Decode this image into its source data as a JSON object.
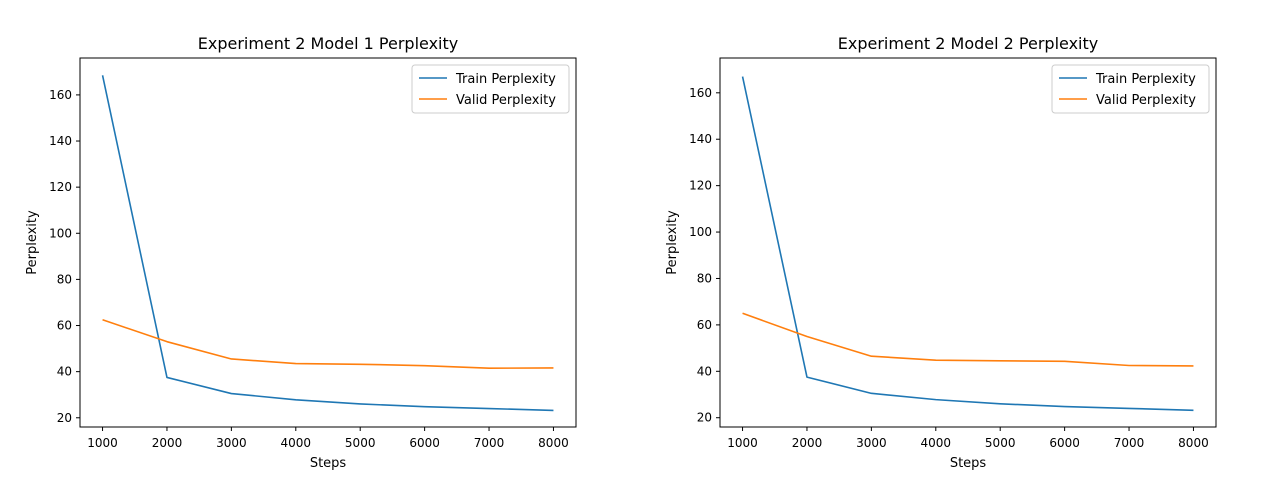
{
  "chart_data": [
    {
      "type": "line",
      "title": "Experiment 2 Model 1 Perplexity",
      "xlabel": "Steps",
      "ylabel": "Perplexity",
      "x": [
        1000,
        2000,
        3000,
        4000,
        5000,
        6000,
        7000,
        8000
      ],
      "xticks": [
        1000,
        2000,
        3000,
        4000,
        5000,
        6000,
        7000,
        8000
      ],
      "yticks": [
        20,
        40,
        60,
        80,
        100,
        120,
        140,
        160
      ],
      "xlim": [
        650,
        8350
      ],
      "ylim": [
        16,
        176
      ],
      "grid": false,
      "legend": "top-right",
      "series": [
        {
          "name": "Train Perplexity",
          "color": "#1f77b4",
          "values": [
            168.5,
            37.5,
            30.5,
            27.8,
            26.0,
            24.8,
            24.0,
            23.2
          ]
        },
        {
          "name": "Valid Perplexity",
          "color": "#ff7f0e",
          "values": [
            62.5,
            53.0,
            45.5,
            43.5,
            43.2,
            42.6,
            41.5,
            41.6
          ]
        }
      ]
    },
    {
      "type": "line",
      "title": "Experiment 2 Model 2 Perplexity",
      "xlabel": "Steps",
      "ylabel": "Perplexity",
      "x": [
        1000,
        2000,
        3000,
        4000,
        5000,
        6000,
        7000,
        8000
      ],
      "xticks": [
        1000,
        2000,
        3000,
        4000,
        5000,
        6000,
        7000,
        8000
      ],
      "yticks": [
        20,
        40,
        60,
        80,
        100,
        120,
        140,
        160
      ],
      "xlim": [
        650,
        8350
      ],
      "ylim": [
        16,
        175
      ],
      "grid": false,
      "legend": "top-right",
      "series": [
        {
          "name": "Train Perplexity",
          "color": "#1f77b4",
          "values": [
            167.0,
            37.5,
            30.5,
            27.8,
            26.0,
            24.8,
            24.0,
            23.2
          ]
        },
        {
          "name": "Valid Perplexity",
          "color": "#ff7f0e",
          "values": [
            65.0,
            55.0,
            46.5,
            44.8,
            44.5,
            44.3,
            42.5,
            42.3
          ]
        }
      ]
    }
  ]
}
